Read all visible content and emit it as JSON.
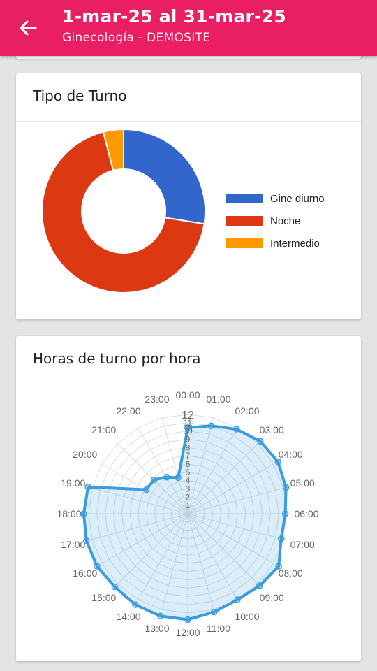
{
  "header": {
    "title": "1-mar-25 al 31-mar-25",
    "subtitle": "Ginecología - DEMOSITE",
    "back_icon": "arrow-back-icon",
    "background": "#ea1e63"
  },
  "cards": {
    "shift_type": {
      "title": "Tipo de Turno"
    },
    "hours": {
      "title": "Horas de turno por hora"
    }
  },
  "chart_data": [
    {
      "type": "pie",
      "donut": true,
      "title": "",
      "labels": [
        "Gine diurno",
        "Noche",
        "Intermedio"
      ],
      "values": [
        27.5,
        68.5,
        4
      ],
      "colors": [
        "#3366cc",
        "#dc3912",
        "#ff9900"
      ],
      "legend": "right"
    },
    {
      "type": "radar",
      "title": "",
      "categories": [
        "00:00",
        "01:00",
        "02:00",
        "03:00",
        "04:00",
        "05:00",
        "06:00",
        "07:00",
        "08:00",
        "09:00",
        "10:00",
        "11:00",
        "12:00",
        "13:00",
        "14:00",
        "15:00",
        "16:00",
        "17:00",
        "18:00",
        "19:00",
        "20:00",
        "21:00",
        "22:00",
        "23:00"
      ],
      "series": [
        {
          "values": [
            10.4,
            11,
            11.8,
            12.4,
            12.6,
            12.3,
            11.8,
            11.7,
            12.7,
            12.3,
            12,
            12.3,
            12.8,
            12.8,
            12.7,
            12.5,
            12.7,
            12.7,
            12.6,
            12.5,
            5.8,
            5.8,
            5.1,
            4.5
          ],
          "color": "#3a9ce0"
        }
      ],
      "rlim": [
        0,
        12
      ],
      "r_ticks": [
        "12",
        "11",
        "10",
        "9",
        "8",
        "7",
        "6",
        "5",
        "4",
        "3",
        "2",
        "1"
      ],
      "grid": true
    }
  ]
}
